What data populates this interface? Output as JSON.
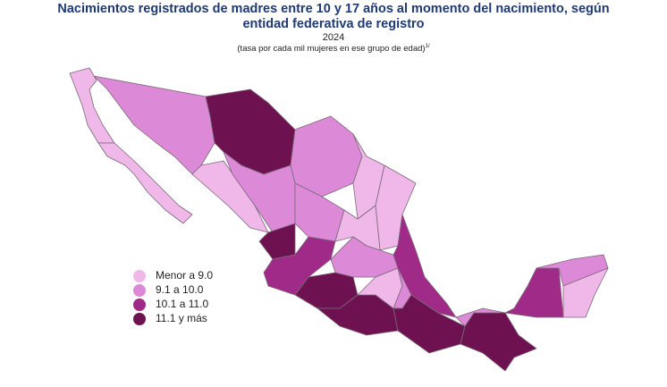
{
  "header": {
    "title": "Nacimientos registrados de madres entre 10 y 17 años al momento del nacimiento, según entidad federativa de registro",
    "year": "2024",
    "note": "(tasa por cada mil mujeres en ese grupo de edad)",
    "note_marker": "1/"
  },
  "legend": [
    {
      "label": "Menor a 9.0",
      "color": "#f0b8e8"
    },
    {
      "label": "9.1 a 10.0",
      "color": "#dc8ad8"
    },
    {
      "label": "10.1 a 11.0",
      "color": "#a02a88"
    },
    {
      "label": "11.1 y más",
      "color": "#6e1150"
    }
  ]
}
